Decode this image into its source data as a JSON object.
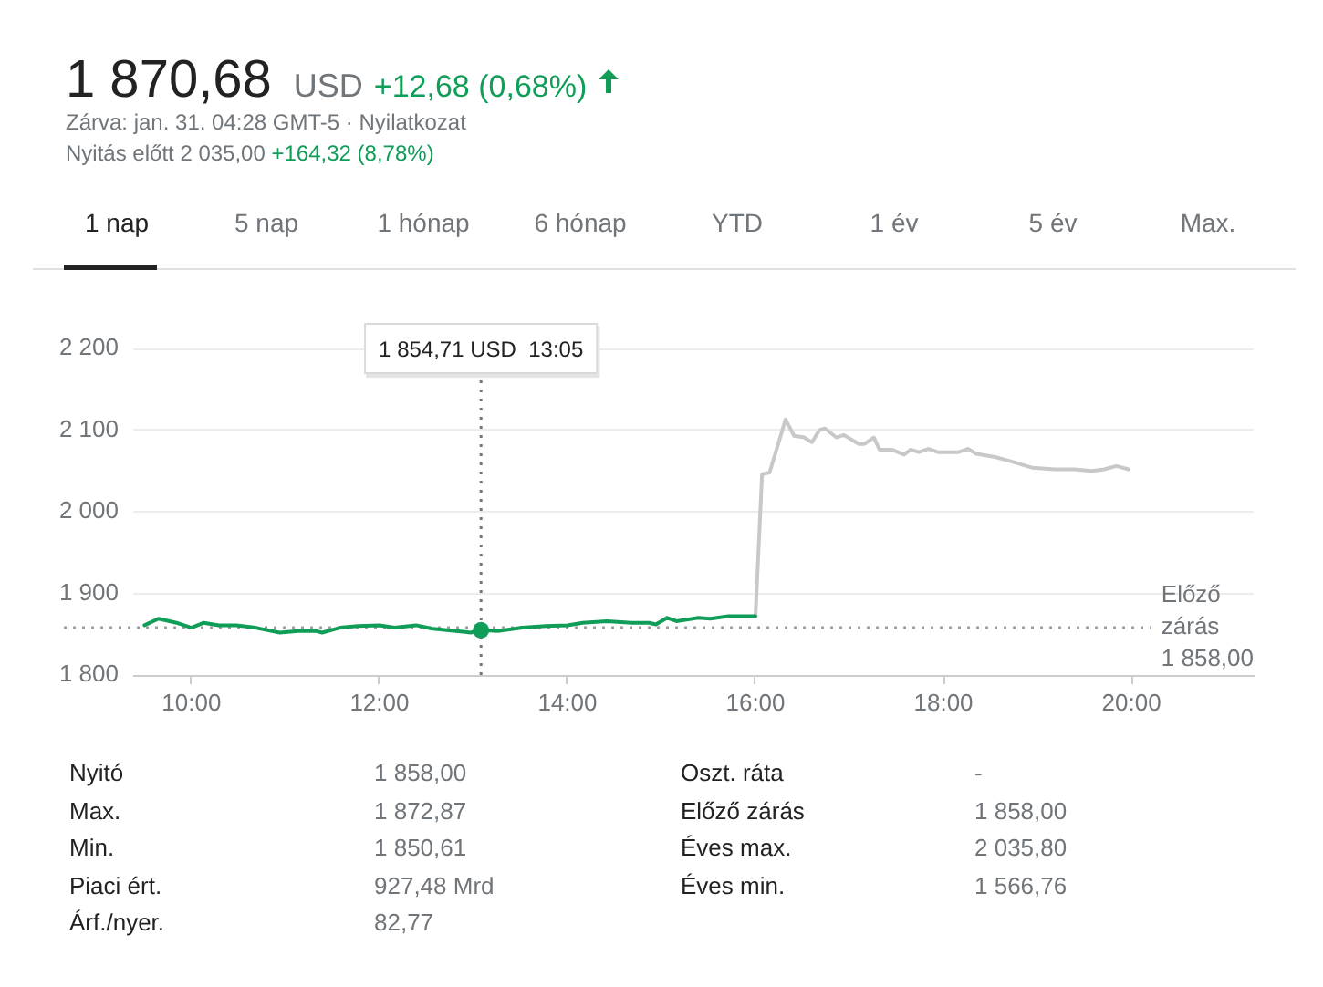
{
  "chart_data": {
    "type": "line",
    "title": "1 870,68",
    "annotations": [
      "USD",
      "+12,68 (0,68%)",
      "Zárva: jan. 31. 04:28 GMT-5 · Nyilatkozat",
      "Nyitás előtt 2 035,00",
      "+164,32 (8,78%)",
      "1 nap",
      "5 nap",
      "1 hónap",
      "6 hónap",
      "YTD",
      "1 év",
      "5 év",
      "Max.",
      "Nyitó",
      "1 858,00",
      "Max.",
      "1 872,87",
      "Min.",
      "1 850,61",
      "Piaci ért.",
      "927,48 Mrd",
      "Árf./nyer.",
      "82,77",
      "Oszt. ráta",
      "-",
      "Előző zárás",
      "1 858,00",
      "Éves max.",
      "2 035,80",
      "Éves min.",
      "1 566,76"
    ],
    "series": [
      {
        "color": "#0f9d58",
        "x": [
          9.5,
          9.65,
          9.84,
          10.0,
          10.13,
          10.29,
          10.48,
          10.68,
          10.94,
          11.13,
          11.32,
          11.39,
          11.58,
          11.77,
          12.0,
          12.16,
          12.39,
          12.55,
          12.81,
          12.97,
          13.08,
          13.26,
          13.52,
          13.77,
          14.0,
          14.16,
          14.42,
          14.68,
          14.87,
          14.94,
          15.06,
          15.16,
          15.39,
          15.52,
          15.71,
          16.0
        ],
        "values": [
          1861,
          1869,
          1864,
          1858,
          1864,
          1861,
          1861,
          1858,
          1852,
          1854,
          1854,
          1852,
          1858,
          1860,
          1861,
          1858,
          1861,
          1857,
          1854,
          1852,
          1855,
          1854,
          1858,
          1860,
          1861,
          1864,
          1866,
          1864,
          1864,
          1862,
          1870,
          1866,
          1870,
          1869,
          1872,
          1872
        ]
      },
      {
        "color": "#c8c8c8",
        "x": [
          16.0,
          16.07,
          16.15,
          16.32,
          16.41,
          16.52,
          16.6,
          16.68,
          16.74,
          16.86,
          16.94,
          17.1,
          17.16,
          17.26,
          17.32,
          17.45,
          17.58,
          17.65,
          17.74,
          17.84,
          17.94,
          18.16,
          18.26,
          18.35,
          18.55,
          18.74,
          18.94,
          19.19,
          19.39,
          19.58,
          19.71,
          19.84,
          19.97
        ],
        "values": [
          1872,
          2046,
          2048,
          2113,
          2093,
          2091,
          2085,
          2100,
          2102,
          2091,
          2094,
          2083,
          2083,
          2091,
          2076,
          2076,
          2070,
          2076,
          2073,
          2077,
          2073,
          2073,
          2077,
          2071,
          2067,
          2061,
          2054,
          2052,
          2052,
          2050,
          2052,
          2056,
          2052
        ]
      },
      {
        "type": "scatter",
        "color": "#0f9d58",
        "marker": "circle",
        "x": [
          13.08
        ],
        "values": [
          1855
        ]
      }
    ],
    "xlim": [
      9.38,
      21.3
    ],
    "xticks": [
      {
        "value": 10,
        "label": "10:00"
      },
      {
        "value": 12,
        "label": "12:00"
      },
      {
        "value": 14,
        "label": "14:00"
      },
      {
        "value": 16,
        "label": "16:00"
      },
      {
        "value": 18,
        "label": "18:00"
      },
      {
        "value": 20,
        "label": "20:00"
      }
    ],
    "ylim": [
      1800,
      2200
    ],
    "yticks": [
      {
        "value": 1800,
        "label": "1 800"
      },
      {
        "value": 1900,
        "label": "1 900"
      },
      {
        "value": 2000,
        "label": "2 000"
      },
      {
        "value": 2100,
        "label": "2 100"
      },
      {
        "value": 2200,
        "label": "2 200"
      }
    ],
    "grid": "y",
    "marker": "none",
    "ref_lines": [
      {
        "axis": "y",
        "value": 1858,
        "label": "Előző zárás 1 858,00",
        "color": "#9e9e9e",
        "line_style": "dotted"
      },
      {
        "axis": "x",
        "value": 13.08,
        "label": "1 854,71 USD  13:05",
        "color": "#757575",
        "line_style": "dotted"
      }
    ]
  }
}
